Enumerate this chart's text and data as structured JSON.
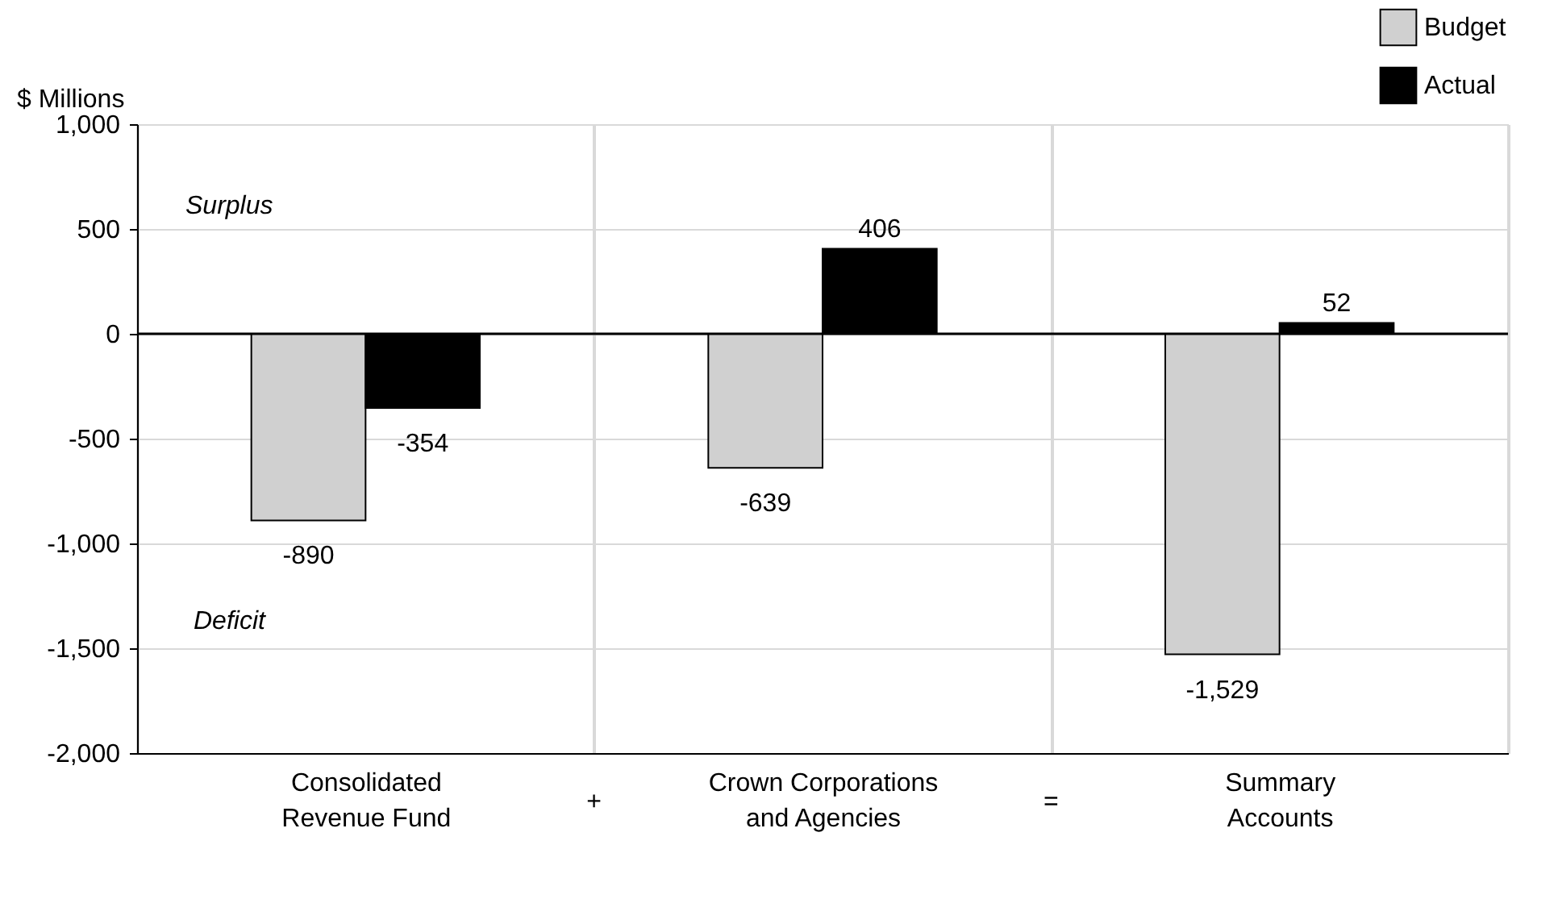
{
  "chart_data": {
    "type": "bar",
    "ylabel": "$ Millions",
    "categories": [
      "Consolidated Revenue Fund",
      "Crown Corporations and Agencies",
      "Summary Accounts"
    ],
    "series": [
      {
        "name": "Budget",
        "color": "#d0d0d0",
        "values": [
          -890,
          -639,
          -1529
        ],
        "value_labels": [
          "-890",
          "-639",
          "-1,529"
        ]
      },
      {
        "name": "Actual",
        "color": "#000000",
        "values": [
          -354,
          406,
          52
        ],
        "value_labels": [
          "-354",
          "406",
          "52"
        ]
      }
    ],
    "ylim": [
      -2000,
      1000
    ],
    "yticks": [
      {
        "value": -2000,
        "label": "-2,000"
      },
      {
        "value": -1500,
        "label": "-1,500"
      },
      {
        "value": -1000,
        "label": "-1,000"
      },
      -500,
      0,
      500,
      {
        "value": 1000,
        "label": "1,000"
      }
    ],
    "grid": true,
    "legend": "top right",
    "ref_lines": [
      {
        "axis": "y",
        "value": 0,
        "color": "#000000"
      }
    ],
    "annotations": [
      "Surplus",
      "Deficit",
      "+",
      "="
    ]
  }
}
